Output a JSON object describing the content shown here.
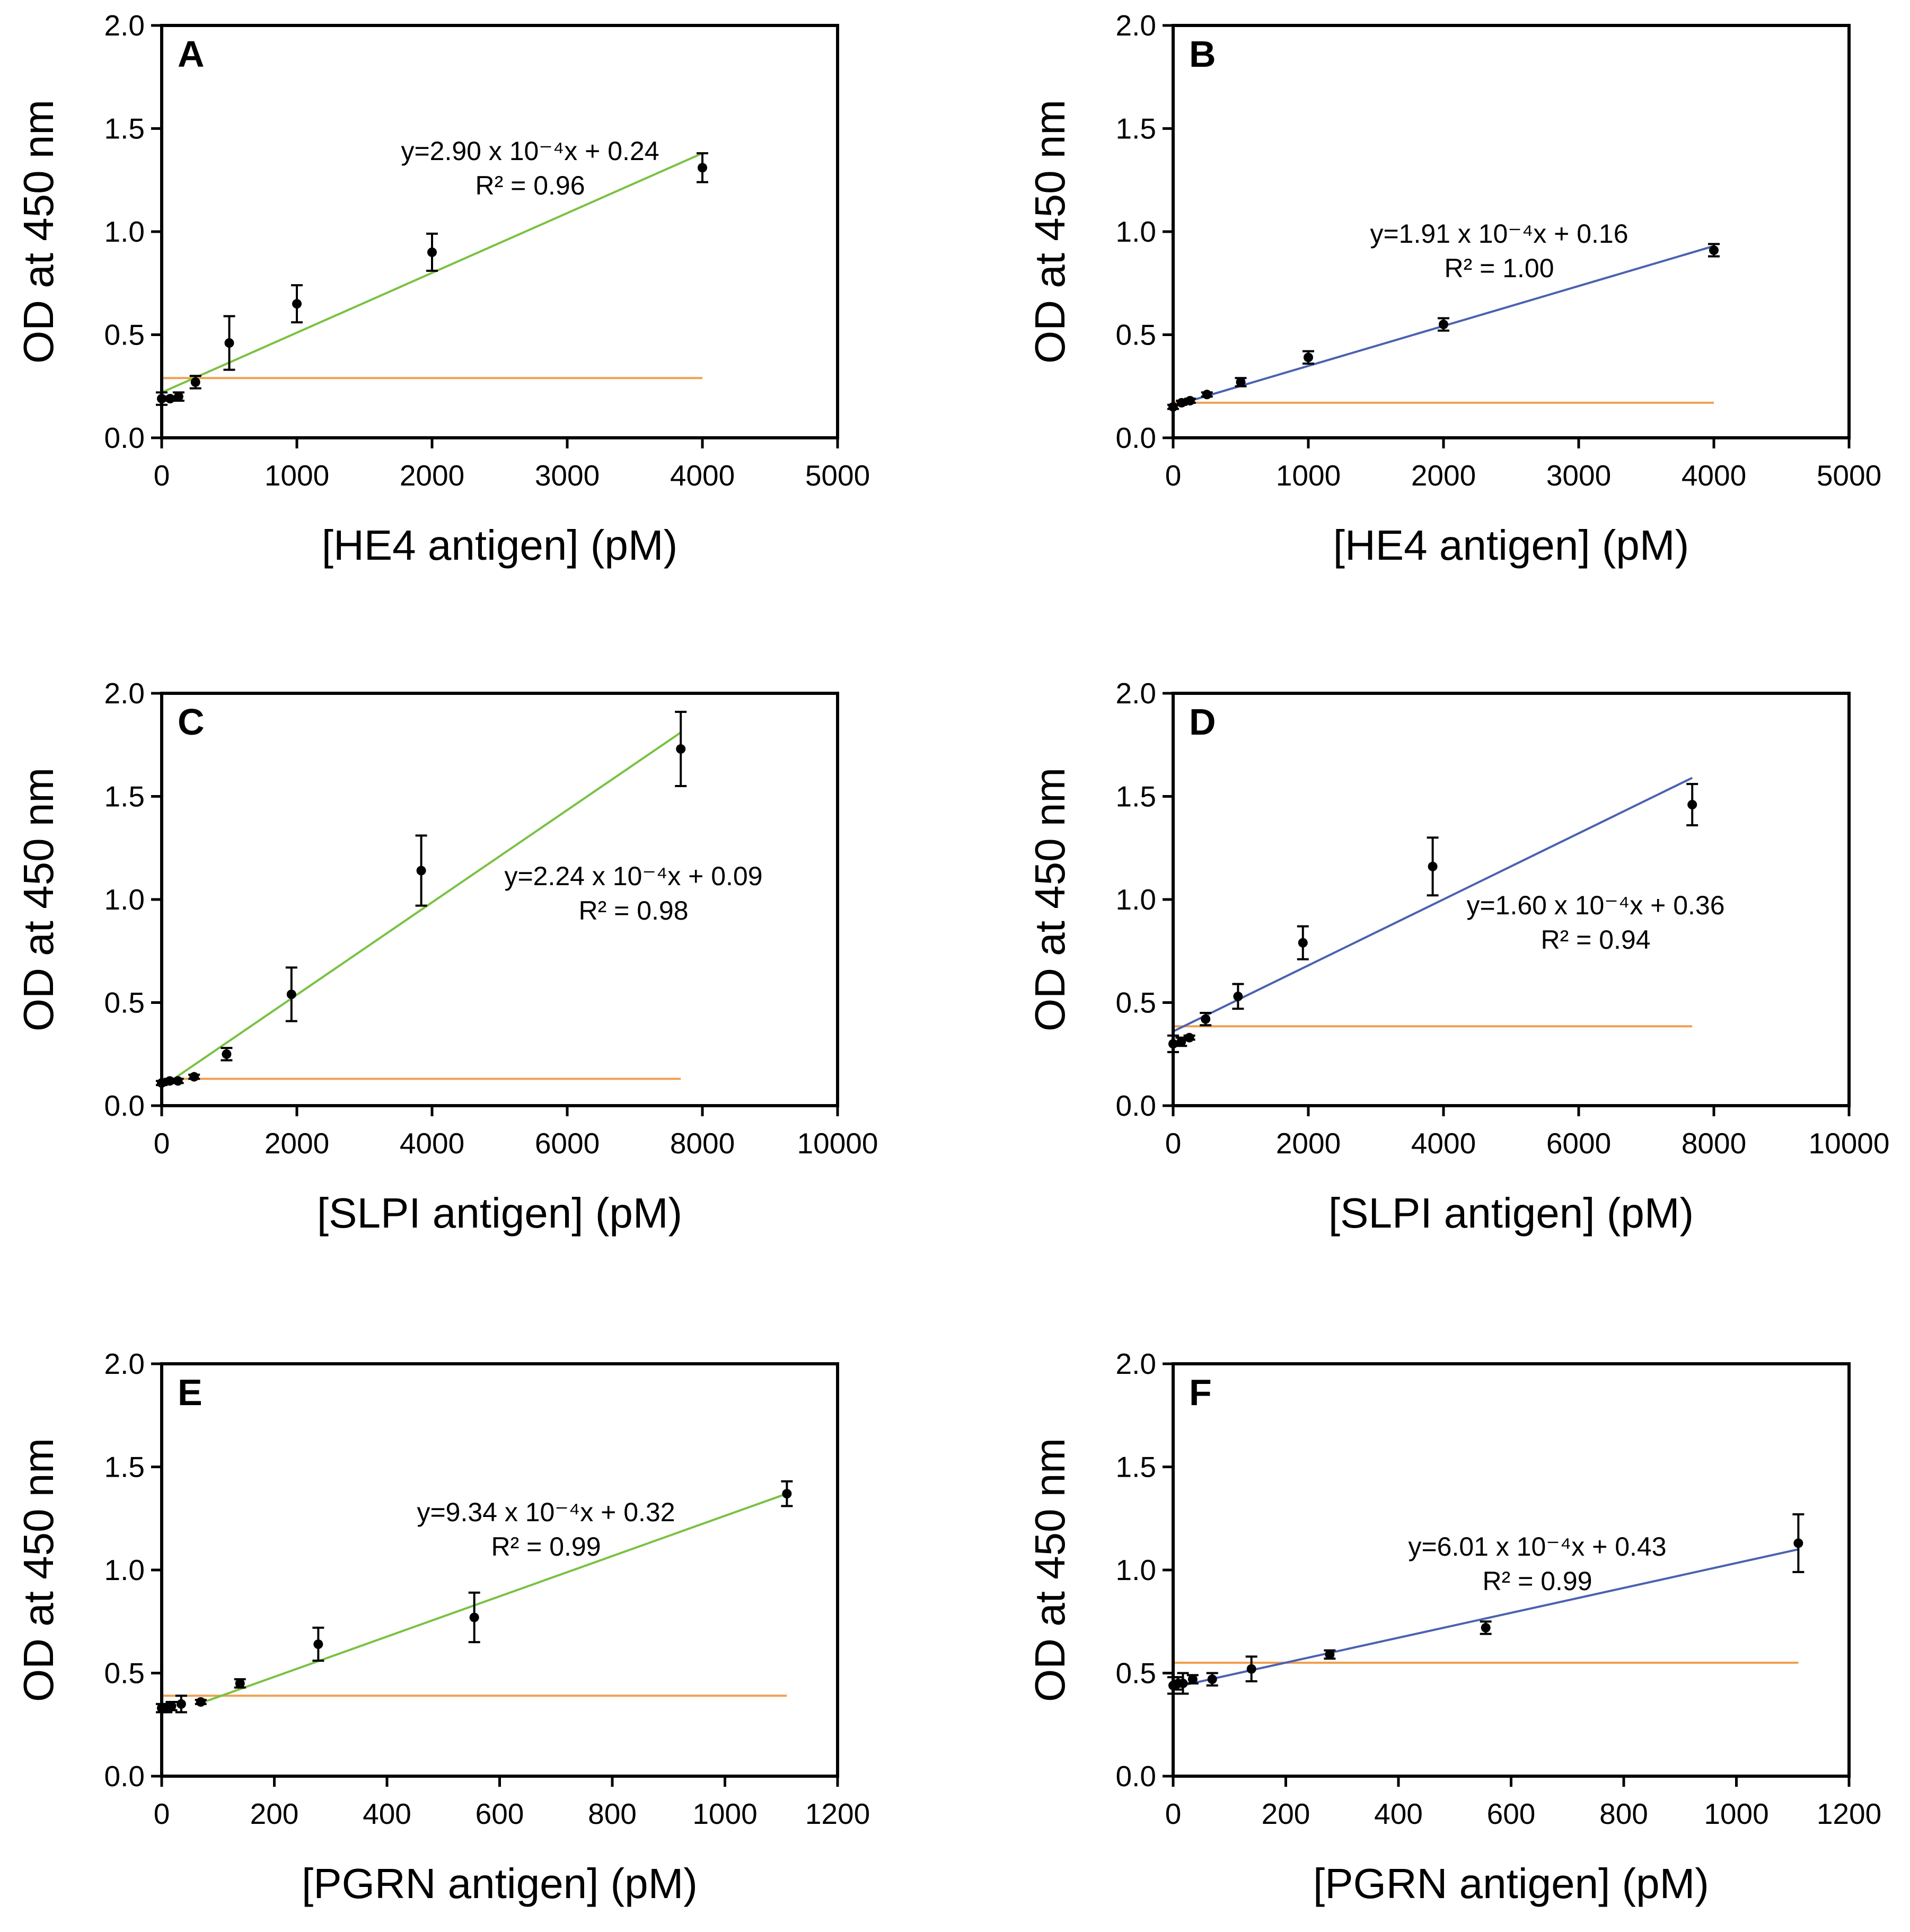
{
  "chart_data": [
    {
      "panel": "A",
      "type": "scatter",
      "xlabel": "[HE4 antigen] (pM)",
      "ylabel": "OD at 450 nm",
      "xlim": [
        0,
        5000
      ],
      "ylim": [
        0,
        2.0
      ],
      "xticks": [
        "0",
        "1000",
        "2000",
        "3000",
        "4000",
        "5000"
      ],
      "yticks": [
        "0.0",
        "0.5",
        "1.0",
        "1.5",
        "2.0"
      ],
      "points": [
        {
          "x": 0,
          "y": 0.19,
          "err": 0.03
        },
        {
          "x": 62.5,
          "y": 0.19,
          "err": 0.01
        },
        {
          "x": 125,
          "y": 0.2,
          "err": 0.02
        },
        {
          "x": 250,
          "y": 0.27,
          "err": 0.03
        },
        {
          "x": 500,
          "y": 0.46,
          "err": 0.13
        },
        {
          "x": 1000,
          "y": 0.65,
          "err": 0.09
        },
        {
          "x": 2000,
          "y": 0.9,
          "err": 0.09
        },
        {
          "x": 4000,
          "y": 1.31,
          "err": 0.07
        }
      ],
      "fit": {
        "x": [
          0,
          4000
        ],
        "y": [
          0.22,
          1.38
        ],
        "color": "#7ac143"
      },
      "threshold": {
        "y": 0.29,
        "x": [
          0,
          4000
        ],
        "color": "#f0a050"
      },
      "equation": "y=2.90 x 10⁻⁴x + 0.24",
      "r2": "R² = 0.96"
    },
    {
      "panel": "B",
      "type": "scatter",
      "xlabel": "[HE4 antigen] (pM)",
      "ylabel": "OD at 450 nm",
      "xlim": [
        0,
        5000
      ],
      "ylim": [
        0,
        2.0
      ],
      "xticks": [
        "0",
        "1000",
        "2000",
        "3000",
        "4000",
        "5000"
      ],
      "yticks": [
        "0.0",
        "0.5",
        "1.0",
        "1.5",
        "2.0"
      ],
      "points": [
        {
          "x": 0,
          "y": 0.15,
          "err": 0.01
        },
        {
          "x": 62.5,
          "y": 0.17,
          "err": 0.01
        },
        {
          "x": 125,
          "y": 0.18,
          "err": 0.01
        },
        {
          "x": 250,
          "y": 0.21,
          "err": 0.01
        },
        {
          "x": 500,
          "y": 0.27,
          "err": 0.02
        },
        {
          "x": 1000,
          "y": 0.39,
          "err": 0.03
        },
        {
          "x": 2000,
          "y": 0.55,
          "err": 0.03
        },
        {
          "x": 4000,
          "y": 0.91,
          "err": 0.03
        }
      ],
      "fit": {
        "x": [
          0,
          4000
        ],
        "y": [
          0.155,
          0.93
        ],
        "color": "#4a62b0"
      },
      "threshold": {
        "y": 0.17,
        "x": [
          0,
          4000
        ],
        "color": "#f0a050"
      },
      "equation": "y=1.91 x 10⁻⁴x + 0.16",
      "r2": "R² = 1.00"
    },
    {
      "panel": "C",
      "type": "scatter",
      "xlabel": "[SLPI antigen] (pM)",
      "ylabel": "OD at 450 nm",
      "xlim": [
        0,
        10000
      ],
      "ylim": [
        0,
        2.0
      ],
      "xticks": [
        "0",
        "2000",
        "4000",
        "6000",
        "8000",
        "10000"
      ],
      "yticks": [
        "0.0",
        "0.5",
        "1.0",
        "1.5",
        "2.0"
      ],
      "points": [
        {
          "x": 0,
          "y": 0.11,
          "err": 0.01
        },
        {
          "x": 120,
          "y": 0.12,
          "err": 0.01
        },
        {
          "x": 240,
          "y": 0.12,
          "err": 0.01
        },
        {
          "x": 480,
          "y": 0.14,
          "err": 0.01
        },
        {
          "x": 960,
          "y": 0.25,
          "err": 0.03
        },
        {
          "x": 1920,
          "y": 0.54,
          "err": 0.13
        },
        {
          "x": 3840,
          "y": 1.14,
          "err": 0.17
        },
        {
          "x": 7680,
          "y": 1.73,
          "err": 0.18
        }
      ],
      "fit": {
        "x": [
          0,
          7680
        ],
        "y": [
          0.09,
          1.81
        ],
        "color": "#7ac143"
      },
      "threshold": {
        "y": 0.13,
        "x": [
          0,
          7680
        ],
        "color": "#f0a050"
      },
      "equation": "y=2.24 x 10⁻⁴x + 0.09",
      "r2": "R² = 0.98"
    },
    {
      "panel": "D",
      "type": "scatter",
      "xlabel": "[SLPI antigen] (pM)",
      "ylabel": "OD at 450 nm",
      "xlim": [
        0,
        10000
      ],
      "ylim": [
        0,
        2.0
      ],
      "xticks": [
        "0",
        "2000",
        "4000",
        "6000",
        "8000",
        "10000"
      ],
      "yticks": [
        "0.0",
        "0.5",
        "1.0",
        "1.5",
        "2.0"
      ],
      "points": [
        {
          "x": 0,
          "y": 0.3,
          "err": 0.04
        },
        {
          "x": 120,
          "y": 0.31,
          "err": 0.02
        },
        {
          "x": 240,
          "y": 0.33,
          "err": 0.01
        },
        {
          "x": 480,
          "y": 0.42,
          "err": 0.03
        },
        {
          "x": 960,
          "y": 0.53,
          "err": 0.06
        },
        {
          "x": 1920,
          "y": 0.79,
          "err": 0.08
        },
        {
          "x": 3840,
          "y": 1.16,
          "err": 0.14
        },
        {
          "x": 7680,
          "y": 1.46,
          "err": 0.1
        }
      ],
      "fit": {
        "x": [
          0,
          7680
        ],
        "y": [
          0.36,
          1.59
        ],
        "color": "#4a62b0"
      },
      "threshold": {
        "y": 0.385,
        "x": [
          0,
          7680
        ],
        "color": "#f0a050"
      },
      "equation": "y=1.60 x 10⁻⁴x + 0.36",
      "r2": "R² = 0.94"
    },
    {
      "panel": "E",
      "type": "scatter",
      "xlabel": "[PGRN antigen] (pM)",
      "ylabel": "OD at 450 nm",
      "xlim": [
        0,
        1200
      ],
      "ylim": [
        0,
        2.0
      ],
      "xticks": [
        "0",
        "200",
        "400",
        "600",
        "800",
        "1000",
        "1200"
      ],
      "yticks": [
        "0.0",
        "0.5",
        "1.0",
        "1.5",
        "2.0"
      ],
      "points": [
        {
          "x": 0,
          "y": 0.33,
          "err": 0.02
        },
        {
          "x": 8.7,
          "y": 0.33,
          "err": 0.02
        },
        {
          "x": 17.4,
          "y": 0.34,
          "err": 0.02
        },
        {
          "x": 34.7,
          "y": 0.35,
          "err": 0.04
        },
        {
          "x": 69.4,
          "y": 0.36,
          "err": 0.01
        },
        {
          "x": 139,
          "y": 0.45,
          "err": 0.02
        },
        {
          "x": 278,
          "y": 0.64,
          "err": 0.08
        },
        {
          "x": 555,
          "y": 0.77,
          "err": 0.12
        },
        {
          "x": 1110,
          "y": 1.37,
          "err": 0.06
        }
      ],
      "fit": {
        "x": [
          70,
          1110
        ],
        "y": [
          0.355,
          1.37
        ],
        "color": "#7ac143"
      },
      "threshold": {
        "y": 0.39,
        "x": [
          0,
          1110
        ],
        "color": "#f0a050"
      },
      "equation": "y=9.34 x 10⁻⁴x + 0.32",
      "r2": "R² = 0.99"
    },
    {
      "panel": "F",
      "type": "scatter",
      "xlabel": "[PGRN antigen] (pM)",
      "ylabel": "OD at 450 nm",
      "xlim": [
        0,
        1200
      ],
      "ylim": [
        0,
        2.0
      ],
      "xticks": [
        "0",
        "200",
        "400",
        "600",
        "800",
        "1000",
        "1200"
      ],
      "yticks": [
        "0.0",
        "0.5",
        "1.0",
        "1.5",
        "2.0"
      ],
      "points": [
        {
          "x": 0,
          "y": 0.44,
          "err": 0.04
        },
        {
          "x": 8.7,
          "y": 0.45,
          "err": 0.03
        },
        {
          "x": 17.4,
          "y": 0.45,
          "err": 0.05
        },
        {
          "x": 34.7,
          "y": 0.47,
          "err": 0.02
        },
        {
          "x": 69.4,
          "y": 0.47,
          "err": 0.03
        },
        {
          "x": 139,
          "y": 0.52,
          "err": 0.06
        },
        {
          "x": 278,
          "y": 0.59,
          "err": 0.02
        },
        {
          "x": 555,
          "y": 0.72,
          "err": 0.03
        },
        {
          "x": 1110,
          "y": 1.13,
          "err": 0.14
        }
      ],
      "fit": {
        "x": [
          0,
          1110
        ],
        "y": [
          0.43,
          1.1
        ],
        "color": "#4a62b0"
      },
      "threshold": {
        "y": 0.55,
        "x": [
          0,
          1110
        ],
        "color": "#f0a050"
      },
      "equation": "y=6.01 x 10⁻⁴x + 0.43",
      "r2": "R² = 0.99"
    }
  ]
}
